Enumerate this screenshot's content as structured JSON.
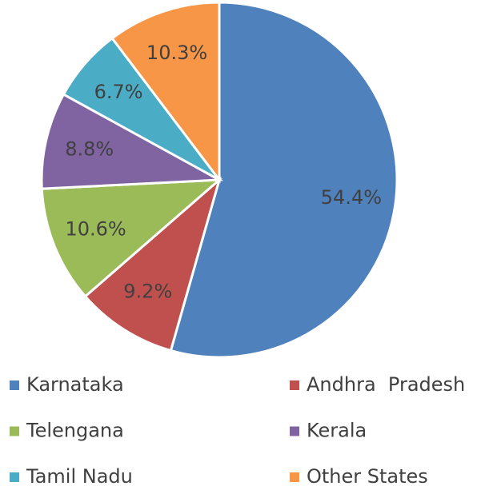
{
  "chart_data": {
    "type": "pie",
    "categories": [
      "Karnataka",
      "Andhra  Pradesh",
      "Telengana",
      "Kerala",
      "Tamil Nadu",
      "Other States"
    ],
    "values": [
      54.4,
      9.2,
      10.6,
      8.8,
      6.7,
      10.3
    ],
    "value_labels": [
      "54.4%",
      "9.2%",
      "10.6%",
      "8.8%",
      "6.7%",
      "10.3%"
    ],
    "colors": [
      "#4f81bd",
      "#c0504d",
      "#9bbb59",
      "#8064a2",
      "#4bacc6",
      "#f79646"
    ],
    "legend": "bottom"
  }
}
